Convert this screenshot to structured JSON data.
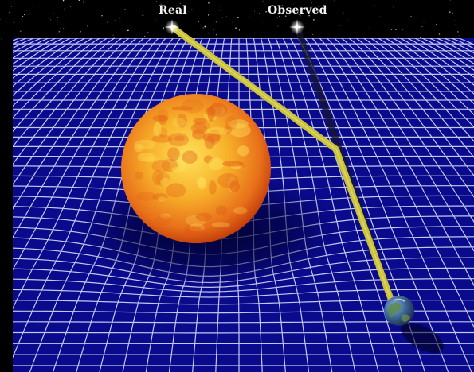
{
  "labels": {
    "real": "Real",
    "observed": "Observed"
  },
  "colors": {
    "space": "#000000",
    "grid_fabric": "#0a0a8c",
    "grid_lines": "#e8ecff",
    "light_ray": "#c9c23a",
    "apparent_ray": "#1a1a33",
    "sun_core": "#ffd23a",
    "sun_edge": "#d8400c",
    "earth_land": "#4a7a4a",
    "earth_ocean": "#2a4a8a"
  },
  "icons": {
    "real_star": "star-icon",
    "observed_star": "star-icon",
    "sun": "sun-icon",
    "earth": "earth-icon"
  }
}
